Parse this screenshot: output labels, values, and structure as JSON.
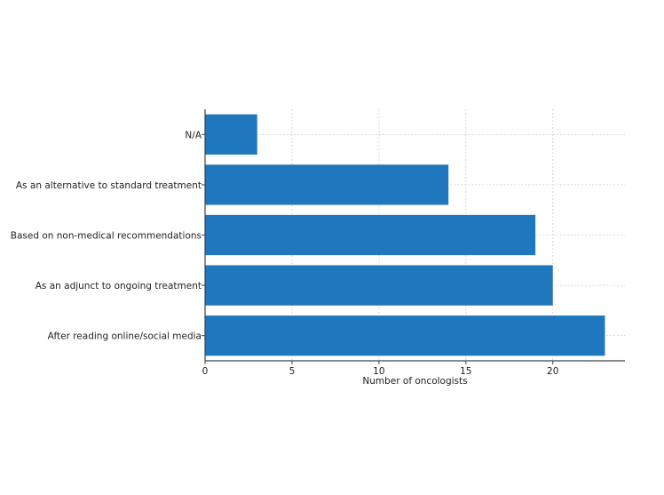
{
  "chart_data": {
    "type": "bar",
    "orientation": "horizontal",
    "title": "",
    "xlabel": "Number of oncologists",
    "ylabel": "",
    "categories": [
      "After reading online/social media",
      "As an adjunct to ongoing treatment",
      "Based on non-medical recommendations",
      "As an alternative to standard treatment",
      "N/A"
    ],
    "values": [
      23,
      20,
      19,
      14,
      3
    ],
    "xlim": [
      0,
      24.15
    ],
    "xticks": [
      0,
      5,
      10,
      15,
      20
    ],
    "grid": true,
    "legend": "none",
    "colors": {
      "bar": "#1f77be",
      "grid": "#d0d0d0",
      "axis": "#444444"
    }
  }
}
